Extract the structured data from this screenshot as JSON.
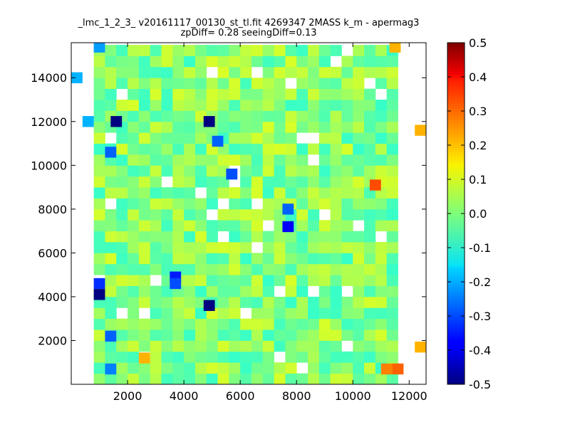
{
  "chart_data": {
    "type": "heatmap",
    "title_line1": "_lmc_1_2_3_ v20161117_00130_st_tl.fit 4269347 2MASS k_m - apermag3",
    "title_line2": "zpDiff= 0.28 seeingDiff=0.13",
    "xlabel": "",
    "ylabel": "",
    "xlim": [
      0,
      12600
    ],
    "ylim": [
      0,
      15600
    ],
    "xticks": [
      2000,
      4000,
      6000,
      8000,
      10000,
      12000
    ],
    "yticks": [
      2000,
      4000,
      6000,
      8000,
      10000,
      12000,
      14000
    ],
    "colorbar": {
      "range": [
        -0.5,
        0.5
      ],
      "ticks": [
        "-0.5",
        "-0.4",
        "-0.3",
        "-0.2",
        "-0.1",
        "0.0",
        "0.1",
        "0.2",
        "0.3",
        "0.4",
        "0.5"
      ],
      "colormap": "jet"
    },
    "cells": [
      {
        "x": 1000,
        "y": 15400,
        "v": -0.22
      },
      {
        "x": 11500,
        "y": 15400,
        "v": 0.2
      },
      {
        "x": 200,
        "y": 14000,
        "v": -0.2
      },
      {
        "x": 1600,
        "y": 12000,
        "v": -0.5
      },
      {
        "x": 4900,
        "y": 12000,
        "v": -0.5
      },
      {
        "x": 600,
        "y": 12000,
        "v": -0.2
      },
      {
        "x": 12400,
        "y": 11600,
        "v": 0.2
      },
      {
        "x": 5200,
        "y": 11100,
        "v": -0.28
      },
      {
        "x": 1400,
        "y": 10600,
        "v": -0.28
      },
      {
        "x": 5700,
        "y": 9600,
        "v": -0.3
      },
      {
        "x": 10800,
        "y": 9100,
        "v": 0.3
      },
      {
        "x": 7700,
        "y": 8000,
        "v": -0.28
      },
      {
        "x": 7700,
        "y": 7200,
        "v": -0.38
      },
      {
        "x": 1000,
        "y": 4600,
        "v": -0.33
      },
      {
        "x": 1000,
        "y": 4100,
        "v": -0.5
      },
      {
        "x": 3700,
        "y": 4900,
        "v": -0.35
      },
      {
        "x": 3700,
        "y": 4600,
        "v": -0.3
      },
      {
        "x": 4900,
        "y": 3600,
        "v": -0.5
      },
      {
        "x": 1400,
        "y": 2200,
        "v": -0.28
      },
      {
        "x": 12400,
        "y": 1700,
        "v": 0.2
      },
      {
        "x": 2600,
        "y": 1200,
        "v": 0.2
      },
      {
        "x": 11200,
        "y": 700,
        "v": 0.25
      },
      {
        "x": 11600,
        "y": 700,
        "v": 0.28
      },
      {
        "x": 1400,
        "y": 700,
        "v": -0.25
      }
    ]
  }
}
